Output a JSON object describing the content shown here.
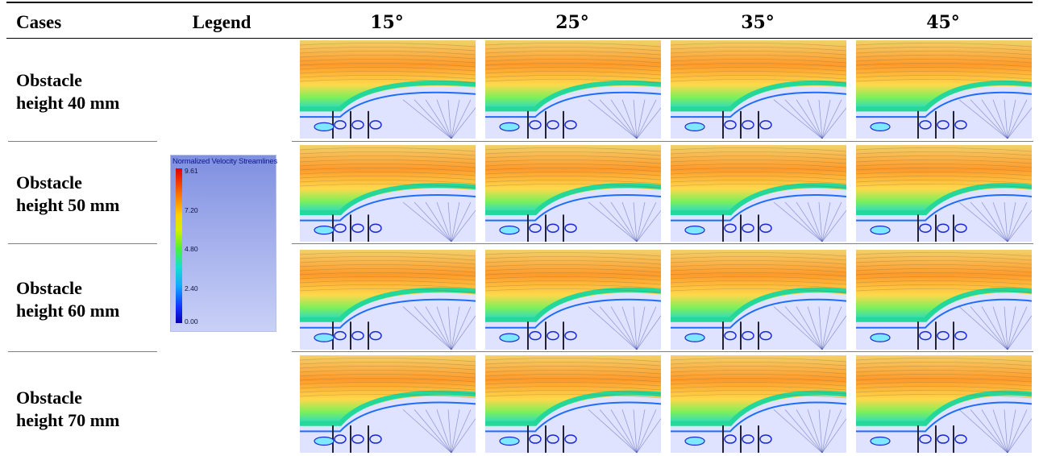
{
  "header": {
    "cases": "Cases",
    "legend": "Legend",
    "angles": [
      "15°",
      "25°",
      "35°",
      "45°"
    ]
  },
  "rows": [
    {
      "label_line1": "Obstacle",
      "label_line2": "height 40 mm"
    },
    {
      "label_line1": "Obstacle",
      "label_line2": "height 50 mm"
    },
    {
      "label_line1": "Obstacle",
      "label_line2": "height 60 mm"
    },
    {
      "label_line1": "Obstacle",
      "label_line2": "height 70 mm"
    }
  ],
  "legend": {
    "title": "Normalized Velocity Streamlines",
    "values": [
      "9.61",
      "7.20",
      "4.80",
      "2.40",
      "0.00"
    ]
  },
  "colors": {
    "top_flow": "#ff8a1e",
    "mid_flow": "#ffd24a",
    "shear_layer": "#2fe08a",
    "wake": "#1a7dff",
    "recirculation": "#c8d0ff"
  }
}
